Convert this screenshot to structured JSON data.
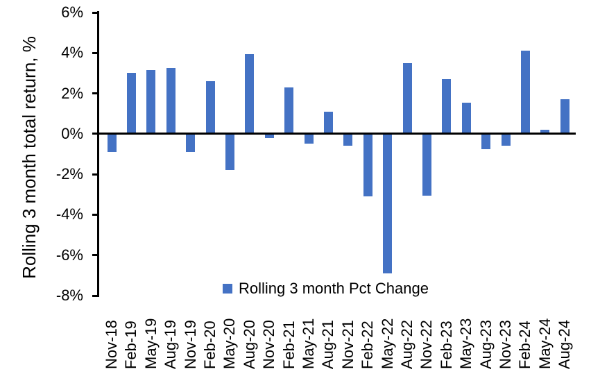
{
  "chart_data": {
    "type": "bar",
    "title": "",
    "xlabel": "",
    "ylabel": "Rolling 3 month total return, %",
    "ylim": [
      -8,
      6
    ],
    "yticks": [
      6,
      4,
      2,
      0,
      -2,
      -4,
      -6,
      -8
    ],
    "ytick_labels": [
      "6%",
      "4%",
      "2%",
      "0%",
      "-2%",
      "-4%",
      "-6%",
      "-8%"
    ],
    "grid": false,
    "legend_position": "bottom-center-inside",
    "legend": [
      "Rolling 3 month Pct Change"
    ],
    "bar_color": "#4472C4",
    "axis_color": "#000000",
    "categories": [
      "Nov-18",
      "Feb-19",
      "May-19",
      "Aug-19",
      "Nov-19",
      "Feb-20",
      "May-20",
      "Aug-20",
      "Nov-20",
      "Feb-21",
      "May-21",
      "Aug-21",
      "Nov-21",
      "Feb-22",
      "May-22",
      "Aug-22",
      "Nov-22",
      "Feb-23",
      "May-23",
      "Aug-23",
      "Nov-23",
      "Feb-24",
      "May-24",
      "Aug-24"
    ],
    "values": [
      -0.9,
      3.0,
      3.15,
      3.25,
      -0.9,
      2.6,
      -1.8,
      3.95,
      -0.2,
      2.3,
      -0.5,
      1.1,
      -0.6,
      -3.1,
      -6.9,
      3.5,
      -3.05,
      2.7,
      1.55,
      -0.75,
      -0.6,
      4.1,
      0.2,
      1.7
    ]
  }
}
